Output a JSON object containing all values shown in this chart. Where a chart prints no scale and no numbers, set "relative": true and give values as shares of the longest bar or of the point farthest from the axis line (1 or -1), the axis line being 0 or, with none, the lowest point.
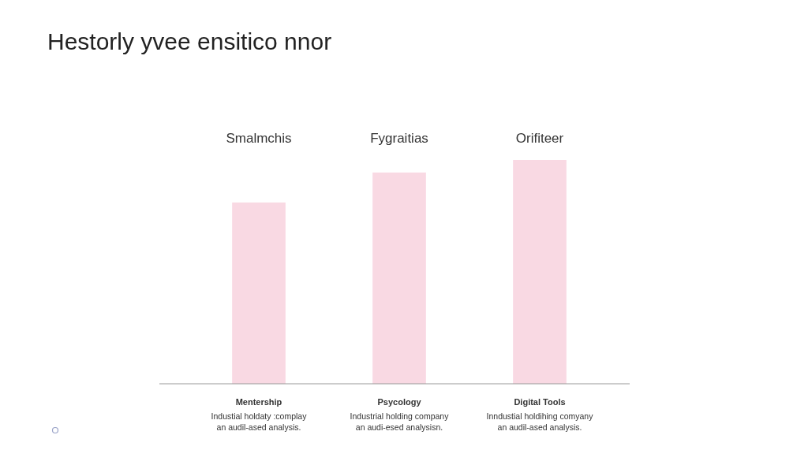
{
  "chart_data": {
    "type": "bar",
    "title": "Hestorly yvee ensitico nnor",
    "relative": true,
    "categories": [
      "Mentership\nIndustial holdaty :complay\nan audil-ased analysis.",
      "Psycology\nIndustrial holding company\nan audi-esed analysisn.",
      "Digital Tools\nInndustial holdihing comyany\nan audil-ased analysis."
    ],
    "values": [
      0.81,
      0.944,
      1
    ],
    "color": "#f9d9e3",
    "annotations": [
      "Smalmchis",
      "Fygraitias",
      "Orifiteer"
    ]
  }
}
